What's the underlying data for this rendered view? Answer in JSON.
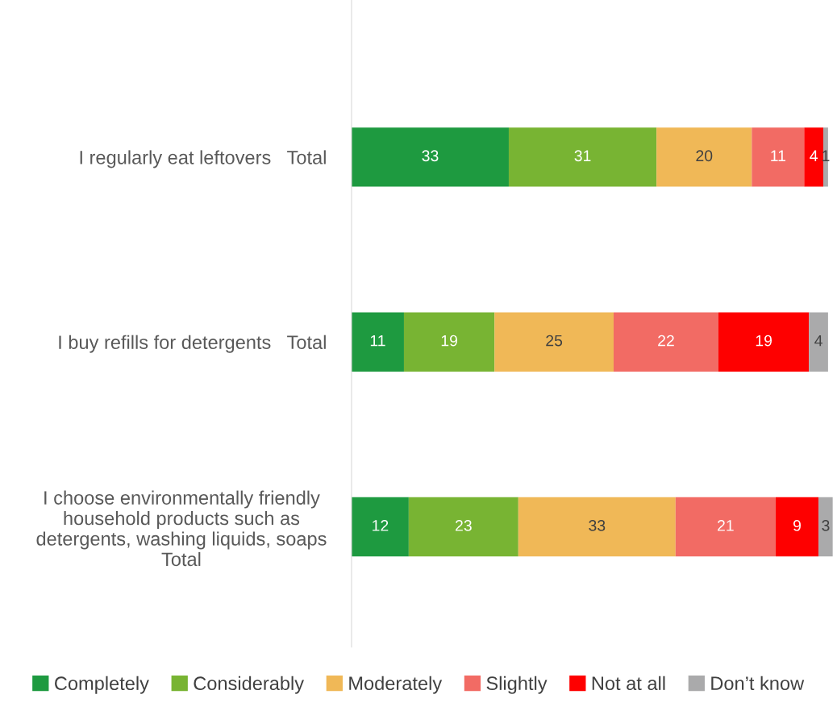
{
  "chart_data": {
    "type": "bar",
    "orientation": "horizontal",
    "stacked": true,
    "data_labels": true,
    "legend": "bottom",
    "grid": false,
    "categories": [
      "I regularly eat leftovers   Total",
      "I buy refills for detergents   Total",
      "I choose environmentally friendly household products such as detergents, washing liquids, soaps Total"
    ],
    "series": [
      {
        "name": "Completely",
        "color": "#1e9a40",
        "values": [
          33,
          11,
          12
        ]
      },
      {
        "name": "Considerably",
        "color": "#78b433",
        "values": [
          31,
          19,
          23
        ]
      },
      {
        "name": "Moderately",
        "color": "#f0b857",
        "values": [
          20,
          25,
          33
        ]
      },
      {
        "name": "Slightly",
        "color": "#f26b64",
        "values": [
          11,
          22,
          21
        ]
      },
      {
        "name": "Not at all",
        "color": "#fe0000",
        "values": [
          4,
          19,
          9
        ]
      },
      {
        "name": "Don’t know",
        "color": "#aaaaab",
        "values": [
          1,
          4,
          3
        ]
      }
    ]
  }
}
